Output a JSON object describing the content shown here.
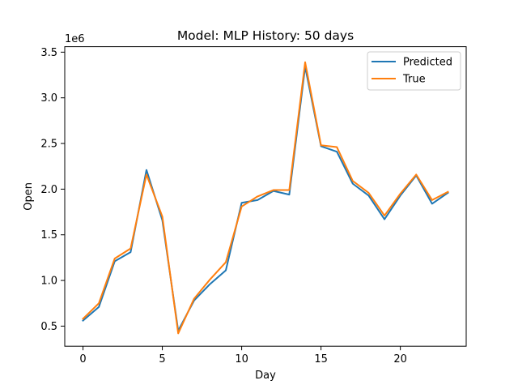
{
  "chart_data": {
    "type": "line",
    "title": "Model: MLP  History: 50 days",
    "xlabel": "Day",
    "ylabel": "Open",
    "y_offset_label": "1e6",
    "xlim": [
      -1.15,
      24.15
    ],
    "ylim": [
      0.28,
      3.56
    ],
    "y_scale_factor": 1000000,
    "x_ticks": [
      0,
      5,
      10,
      15,
      20
    ],
    "y_ticks": [
      0.5,
      1.0,
      1.5,
      2.0,
      2.5,
      3.0,
      3.5
    ],
    "y_tick_labels": [
      "0.5",
      "1.0",
      "1.5",
      "2.0",
      "2.5",
      "3.0",
      "3.5"
    ],
    "x_tick_labels": [
      "0",
      "5",
      "10",
      "15",
      "20"
    ],
    "grid": false,
    "legend_position": "top-right",
    "x": [
      0,
      1,
      2,
      3,
      4,
      5,
      6,
      7,
      8,
      9,
      10,
      11,
      12,
      13,
      14,
      15,
      16,
      17,
      18,
      19,
      20,
      21,
      22,
      23
    ],
    "series": [
      {
        "name": "Predicted",
        "color": "#1f77b4",
        "values": [
          0.56,
          0.71,
          1.21,
          1.31,
          2.21,
          1.66,
          0.45,
          0.78,
          0.96,
          1.11,
          1.85,
          1.88,
          1.98,
          1.94,
          3.34,
          2.47,
          2.41,
          2.06,
          1.93,
          1.67,
          1.93,
          2.15,
          1.84,
          1.96
        ]
      },
      {
        "name": "True",
        "color": "#ff7f0e",
        "values": [
          0.58,
          0.75,
          1.24,
          1.35,
          2.16,
          1.7,
          0.42,
          0.8,
          1.01,
          1.2,
          1.81,
          1.92,
          1.99,
          1.99,
          3.39,
          2.48,
          2.46,
          2.09,
          1.96,
          1.71,
          1.95,
          2.16,
          1.88,
          1.97
        ]
      }
    ]
  }
}
